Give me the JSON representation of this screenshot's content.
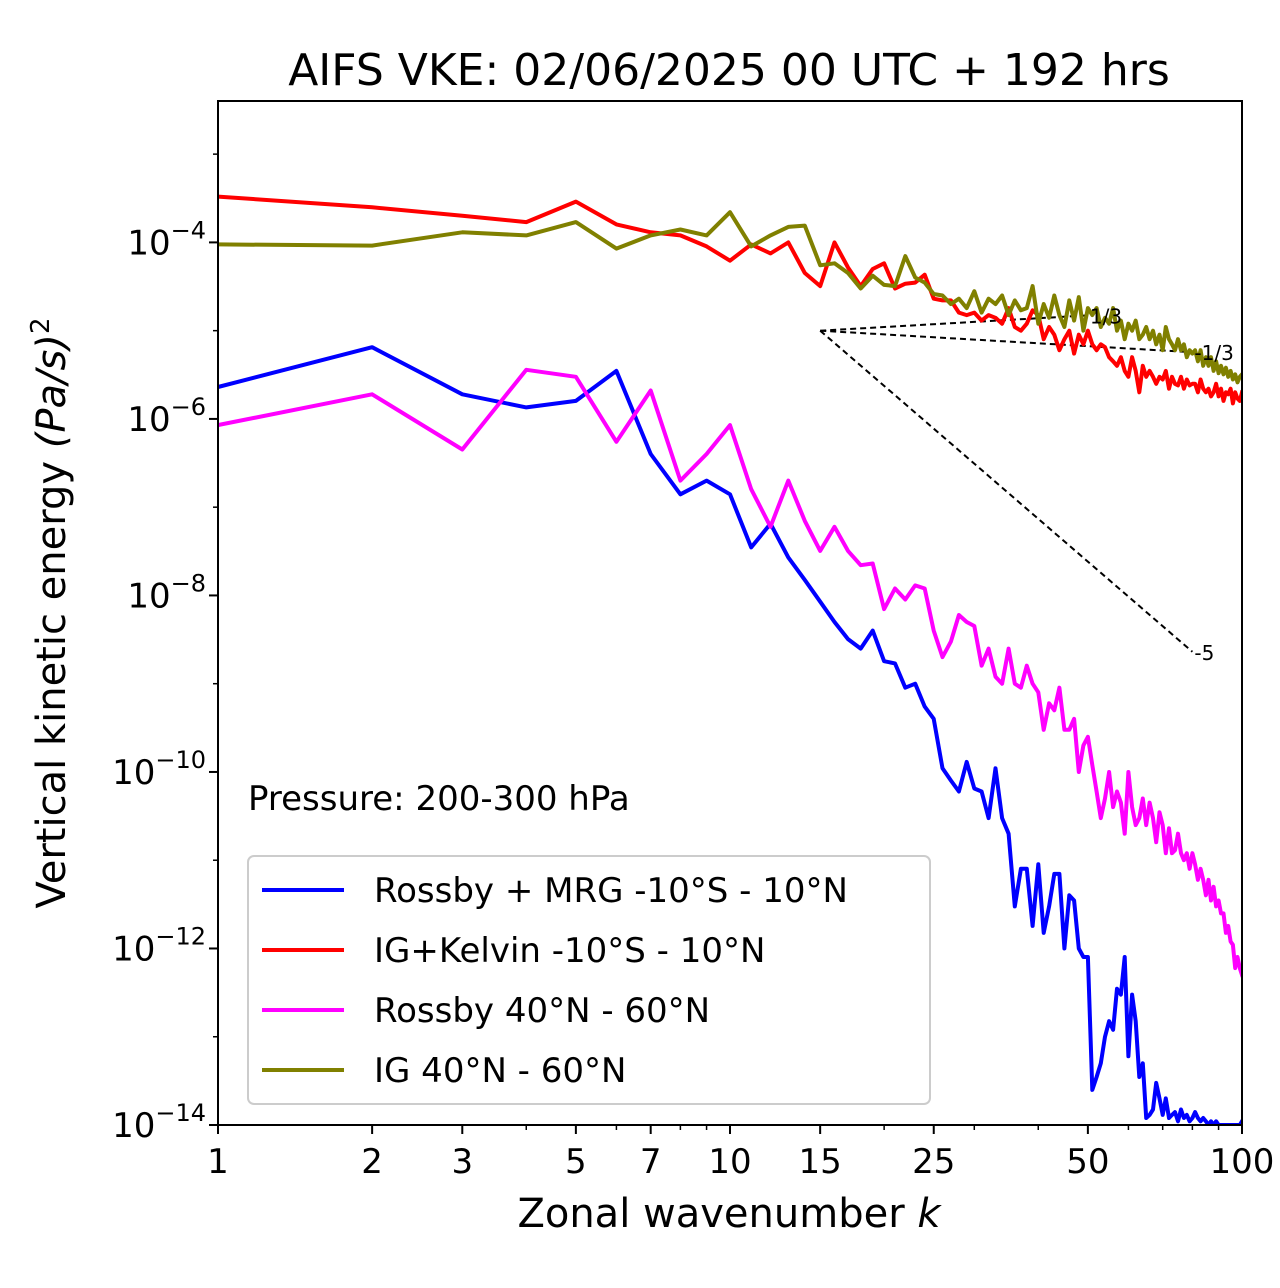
{
  "chart_data": {
    "type": "line",
    "title": "AIFS VKE: 02/06/2025 00 UTC + 192 hrs",
    "xlabel": "Zonal wavenumber",
    "xlabel_italic": "k",
    "ylabel": "Vertical kinetic energy",
    "ylabel_italic": "(Pa/s)",
    "ylabel_sup": "2",
    "xscale": "log",
    "yscale": "log",
    "xlim": [
      1,
      100
    ],
    "ylim": [
      1e-14,
      0.004
    ],
    "xticks": [
      1,
      2,
      3,
      5,
      7,
      10,
      15,
      25,
      50,
      100
    ],
    "xtick_labels": [
      "1",
      "2",
      "3",
      "5",
      "7",
      "10",
      "15",
      "25",
      "50",
      "100"
    ],
    "yticks": [
      {
        "base": "10",
        "exp": "−4",
        "value": 0.0001
      },
      {
        "base": "10",
        "exp": "−6",
        "value": 1e-06
      },
      {
        "base": "10",
        "exp": "−8",
        "value": 1e-08
      },
      {
        "base": "10",
        "exp": "−10",
        "value": 1e-10
      },
      {
        "base": "10",
        "exp": "−12",
        "value": 1e-12
      },
      {
        "base": "10",
        "exp": "−14",
        "value": 1e-14
      }
    ],
    "grid": false,
    "legend_position": "lower-left",
    "annotation": "Pressure: 200-300 hPa",
    "series": [
      {
        "name": "Rossby + MRG -10°S - 10°N",
        "color": "#0000ff",
        "x": [
          1,
          2,
          3,
          4,
          5,
          6,
          7,
          8,
          9,
          10,
          11,
          12,
          13,
          14,
          15,
          16,
          17,
          18,
          19,
          20,
          21,
          22,
          23,
          24,
          25,
          26,
          27,
          28,
          29,
          30,
          31,
          32,
          33,
          34,
          35,
          36,
          37,
          38,
          39,
          40,
          41,
          42,
          43,
          44,
          45,
          46,
          47,
          48,
          49,
          50,
          51,
          52,
          53,
          54,
          55,
          56,
          57,
          58,
          59,
          60,
          61,
          62,
          63,
          64,
          65,
          66,
          67,
          68,
          69,
          70,
          71,
          72,
          73,
          74,
          75,
          76,
          77,
          78,
          79,
          80,
          81,
          82,
          83,
          84,
          85,
          86,
          87,
          88,
          89,
          90,
          91,
          92,
          93,
          94,
          95,
          96,
          97,
          98,
          99,
          100
        ],
        "y": [
          2.3e-06,
          6.5e-06,
          1.9e-06,
          1.35e-06,
          1.6e-06,
          3.5e-06,
          4e-07,
          1.4e-07,
          2e-07,
          1.4e-07,
          3.5e-08,
          6.5e-08,
          2.7e-08,
          1.5e-08,
          8.5e-09,
          5e-09,
          3.2e-09,
          2.5e-09,
          4e-09,
          1.8e-09,
          1.7e-09,
          9e-10,
          1e-09,
          5.5e-10,
          4e-10,
          1.1e-10,
          8e-11,
          6e-11,
          1.3e-10,
          6.5e-11,
          6e-11,
          3e-11,
          1.1e-10,
          3e-11,
          2e-11,
          3e-12,
          8e-12,
          8e-12,
          1.8e-12,
          9e-12,
          1.5e-12,
          3e-12,
          7e-12,
          7e-12,
          1e-12,
          4e-12,
          3.5e-12,
          1e-12,
          8e-13,
          8e-13,
          2.5e-14,
          3.5e-14,
          5e-14,
          1e-13,
          1.5e-13,
          1.2e-13,
          3.5e-13,
          3e-13,
          8e-13,
          6e-14,
          3e-13,
          1.5e-13,
          3.5e-14,
          5e-14,
          1.2e-14,
          1.3e-14,
          1.5e-14,
          3e-14,
          2e-14,
          1.3e-14,
          2e-14,
          1.2e-14,
          1.3e-14,
          1.4e-14,
          1.1e-14,
          1.5e-14,
          1.2e-14,
          1.3e-14,
          1.1e-14,
          1.2e-14,
          1.4e-14,
          1.2e-14,
          1.1e-14,
          1.2e-14,
          1.1e-14,
          1e-14,
          1.1e-14,
          1e-14,
          1.1e-14,
          1e-14,
          1e-14,
          1e-14,
          1e-14,
          1e-14,
          1e-14,
          1e-14,
          1e-14,
          1e-14,
          1e-14,
          1.1e-14
        ]
      },
      {
        "name": "IG+Kelvin -10°S - 10°N",
        "color": "#ff0000",
        "x": [
          1,
          2,
          3,
          4,
          5,
          6,
          7,
          8,
          9,
          10,
          11,
          12,
          13,
          14,
          15,
          16,
          17,
          18,
          19,
          20,
          21,
          22,
          23,
          24,
          25,
          26,
          27,
          28,
          29,
          30,
          31,
          32,
          33,
          34,
          35,
          36,
          37,
          38,
          39,
          40,
          41,
          42,
          43,
          44,
          45,
          46,
          47,
          48,
          49,
          50,
          51,
          52,
          53,
          54,
          55,
          56,
          57,
          58,
          59,
          60,
          61,
          62,
          63,
          64,
          65,
          66,
          67,
          68,
          69,
          70,
          71,
          72,
          73,
          74,
          75,
          76,
          77,
          78,
          79,
          80,
          81,
          82,
          83,
          84,
          85,
          86,
          87,
          88,
          89,
          90,
          91,
          92,
          93,
          94,
          95,
          96,
          97,
          98,
          99,
          100
        ],
        "y": [
          0.00033,
          0.00025,
          0.0002,
          0.00017,
          0.00029,
          0.00016,
          0.00013,
          0.00012,
          9e-05,
          6.2e-05,
          9.5e-05,
          7.5e-05,
          0.0001,
          4.5e-05,
          3.2e-05,
          0.0001,
          5.2e-05,
          3.2e-05,
          5e-05,
          5.8e-05,
          3e-05,
          3.4e-05,
          3.5e-05,
          4.3e-05,
          2.3e-05,
          2.2e-05,
          2.2e-05,
          1.6e-05,
          1.5e-05,
          1.6e-05,
          1.3e-05,
          1.5e-05,
          1.4e-05,
          1.2e-05,
          1.8e-05,
          1.1e-05,
          1e-05,
          1.2e-05,
          1.7e-05,
          1.5e-05,
          8e-06,
          1.1e-05,
          9e-06,
          6e-06,
          8e-06,
          1e-05,
          5.5e-06,
          9e-06,
          7e-06,
          1e-05,
          7e-06,
          6e-06,
          7e-06,
          6.5e-06,
          5e-06,
          4.5e-06,
          4e-06,
          5e-06,
          3.5e-06,
          3e-06,
          5e-06,
          3.5e-06,
          2e-06,
          4e-06,
          3e-06,
          3.5e-06,
          3e-06,
          2.5e-06,
          3e-06,
          2.8e-06,
          3.5e-06,
          2.2e-06,
          3e-06,
          2.5e-06,
          2.4e-06,
          3e-06,
          2.2e-06,
          2.8e-06,
          2.4e-06,
          2.5e-06,
          2.5e-06,
          2e-06,
          2.8e-06,
          2.2e-06,
          2e-06,
          2.2e-06,
          1.8e-06,
          2e-06,
          2.5e-06,
          1.8e-06,
          2.2e-06,
          1.6e-06,
          2e-06,
          1.9e-06,
          2.2e-06,
          1.5e-06,
          2e-06,
          1.7e-06,
          1.6e-06,
          2e-06
        ]
      },
      {
        "name": "Rossby 40°N - 60°N",
        "color": "#ff00ff",
        "x": [
          1,
          2,
          3,
          4,
          5,
          6,
          7,
          8,
          9,
          10,
          11,
          12,
          13,
          14,
          15,
          16,
          17,
          18,
          19,
          20,
          21,
          22,
          23,
          24,
          25,
          26,
          27,
          28,
          29,
          30,
          31,
          32,
          33,
          34,
          35,
          36,
          37,
          38,
          39,
          40,
          41,
          42,
          43,
          44,
          45,
          46,
          47,
          48,
          49,
          50,
          51,
          52,
          53,
          54,
          55,
          56,
          57,
          58,
          59,
          60,
          61,
          62,
          63,
          64,
          65,
          66,
          67,
          68,
          69,
          70,
          71,
          72,
          73,
          74,
          75,
          76,
          77,
          78,
          79,
          80,
          81,
          82,
          83,
          84,
          85,
          86,
          87,
          88,
          89,
          90,
          91,
          92,
          93,
          94,
          95,
          96,
          97,
          98,
          99,
          100
        ],
        "y": [
          8.5e-07,
          1.9e-06,
          4.5e-07,
          3.6e-06,
          3e-06,
          5.5e-07,
          2.1e-06,
          2e-07,
          4e-07,
          8.5e-07,
          1.6e-07,
          6e-08,
          2e-07,
          7e-08,
          3.2e-08,
          6e-08,
          3.2e-08,
          2.2e-08,
          2.3e-08,
          7e-09,
          1.2e-08,
          9e-09,
          1.3e-08,
          1.2e-08,
          4e-09,
          2e-09,
          3e-09,
          6e-09,
          5e-09,
          4.5e-09,
          1.6e-09,
          2.5e-09,
          1.2e-09,
          1e-09,
          2.5e-09,
          1e-09,
          9e-10,
          1.6e-09,
          1e-09,
          8e-10,
          3e-10,
          6e-10,
          5e-10,
          9e-10,
          3e-10,
          3e-10,
          4e-10,
          1e-10,
          2e-10,
          2.5e-10,
          1.2e-10,
          6e-11,
          3e-11,
          5e-11,
          1e-10,
          4e-11,
          6e-11,
          4.5e-11,
          2e-11,
          1e-10,
          4e-11,
          2.5e-11,
          3e-11,
          5e-11,
          2.5e-11,
          4.5e-11,
          3e-11,
          1.6e-11,
          3.5e-11,
          2.5e-11,
          1.2e-11,
          2.3e-11,
          1.2e-11,
          1.3e-11,
          2e-11,
          1.2e-11,
          1e-11,
          1.2e-11,
          8e-12,
          1.2e-11,
          9e-12,
          6e-12,
          8e-12,
          6e-12,
          4e-12,
          6e-12,
          3.5e-12,
          5e-12,
          3e-12,
          3.5e-12,
          2.5e-12,
          2.5e-12,
          1.5e-12,
          1.8e-12,
          1.2e-12,
          1.1e-12,
          6e-13,
          8e-13,
          6e-13,
          5e-13
        ]
      },
      {
        "name": "IG 40°N - 60°N",
        "color": "#808000",
        "x": [
          1,
          2,
          3,
          4,
          5,
          6,
          7,
          8,
          9,
          10,
          11,
          12,
          13,
          14,
          15,
          16,
          17,
          18,
          19,
          20,
          21,
          22,
          23,
          24,
          25,
          26,
          27,
          28,
          29,
          30,
          31,
          32,
          33,
          34,
          35,
          36,
          37,
          38,
          39,
          40,
          41,
          42,
          43,
          44,
          45,
          46,
          47,
          48,
          49,
          50,
          51,
          52,
          53,
          54,
          55,
          56,
          57,
          58,
          59,
          60,
          61,
          62,
          63,
          64,
          65,
          66,
          67,
          68,
          69,
          70,
          71,
          72,
          73,
          74,
          75,
          76,
          77,
          78,
          79,
          80,
          81,
          82,
          83,
          84,
          85,
          86,
          87,
          88,
          89,
          90,
          91,
          92,
          93,
          94,
          95,
          96,
          97,
          98,
          99,
          100
        ],
        "y": [
          9.5e-05,
          9.2e-05,
          0.00013,
          0.00012,
          0.00017,
          8.5e-05,
          0.00012,
          0.00014,
          0.00012,
          0.00022,
          9e-05,
          0.00012,
          0.00015,
          0.000155,
          5.5e-05,
          5.8e-05,
          4.5e-05,
          3e-05,
          4.2e-05,
          3.3e-05,
          3.2e-05,
          7e-05,
          4e-05,
          3.5e-05,
          2.6e-05,
          2.5e-05,
          2e-05,
          2.3e-05,
          1.8e-05,
          2.8e-05,
          1.6e-05,
          2.3e-05,
          2e-05,
          2.5e-05,
          1.5e-05,
          2.2e-05,
          1.7e-05,
          1.8e-05,
          3.2e-05,
          1.2e-05,
          2e-05,
          1.4e-05,
          2.5e-05,
          1.5e-05,
          1.1e-05,
          2.2e-05,
          1.3e-05,
          2.4e-05,
          1e-05,
          1.8e-05,
          1.5e-05,
          1.8e-05,
          1.1e-05,
          1.4e-05,
          1.2e-05,
          1.8e-05,
          1e-05,
          1.3e-05,
          8e-06,
          1.2e-05,
          1e-05,
          1.3e-05,
          8e-06,
          9e-06,
          1.1e-05,
          8e-06,
          1e-05,
          7e-06,
          9e-06,
          6e-06,
          1.1e-05,
          8e-06,
          7e-06,
          6e-06,
          8e-06,
          6e-06,
          7e-06,
          5e-06,
          6e-06,
          5.5e-06,
          6e-06,
          4.5e-06,
          6e-06,
          4e-06,
          5e-06,
          4e-06,
          5e-06,
          3.5e-06,
          4.5e-06,
          3.3e-06,
          4e-06,
          3.2e-06,
          3.8e-06,
          3e-06,
          3.5e-06,
          2.8e-06,
          3.2e-06,
          2.6e-06,
          3e-06,
          3.2e-06
        ]
      }
    ],
    "reference_lines": [
      {
        "label": "1/3",
        "x": [
          15,
          50
        ],
        "y": [
          1e-05,
          1.49e-05
        ]
      },
      {
        "label": "-1/3",
        "x": [
          15,
          80
        ],
        "y": [
          1e-05,
          5.7e-06
        ]
      },
      {
        "label": "-5",
        "x": [
          15,
          80
        ],
        "y": [
          1e-05,
          2.3e-09
        ]
      }
    ]
  }
}
